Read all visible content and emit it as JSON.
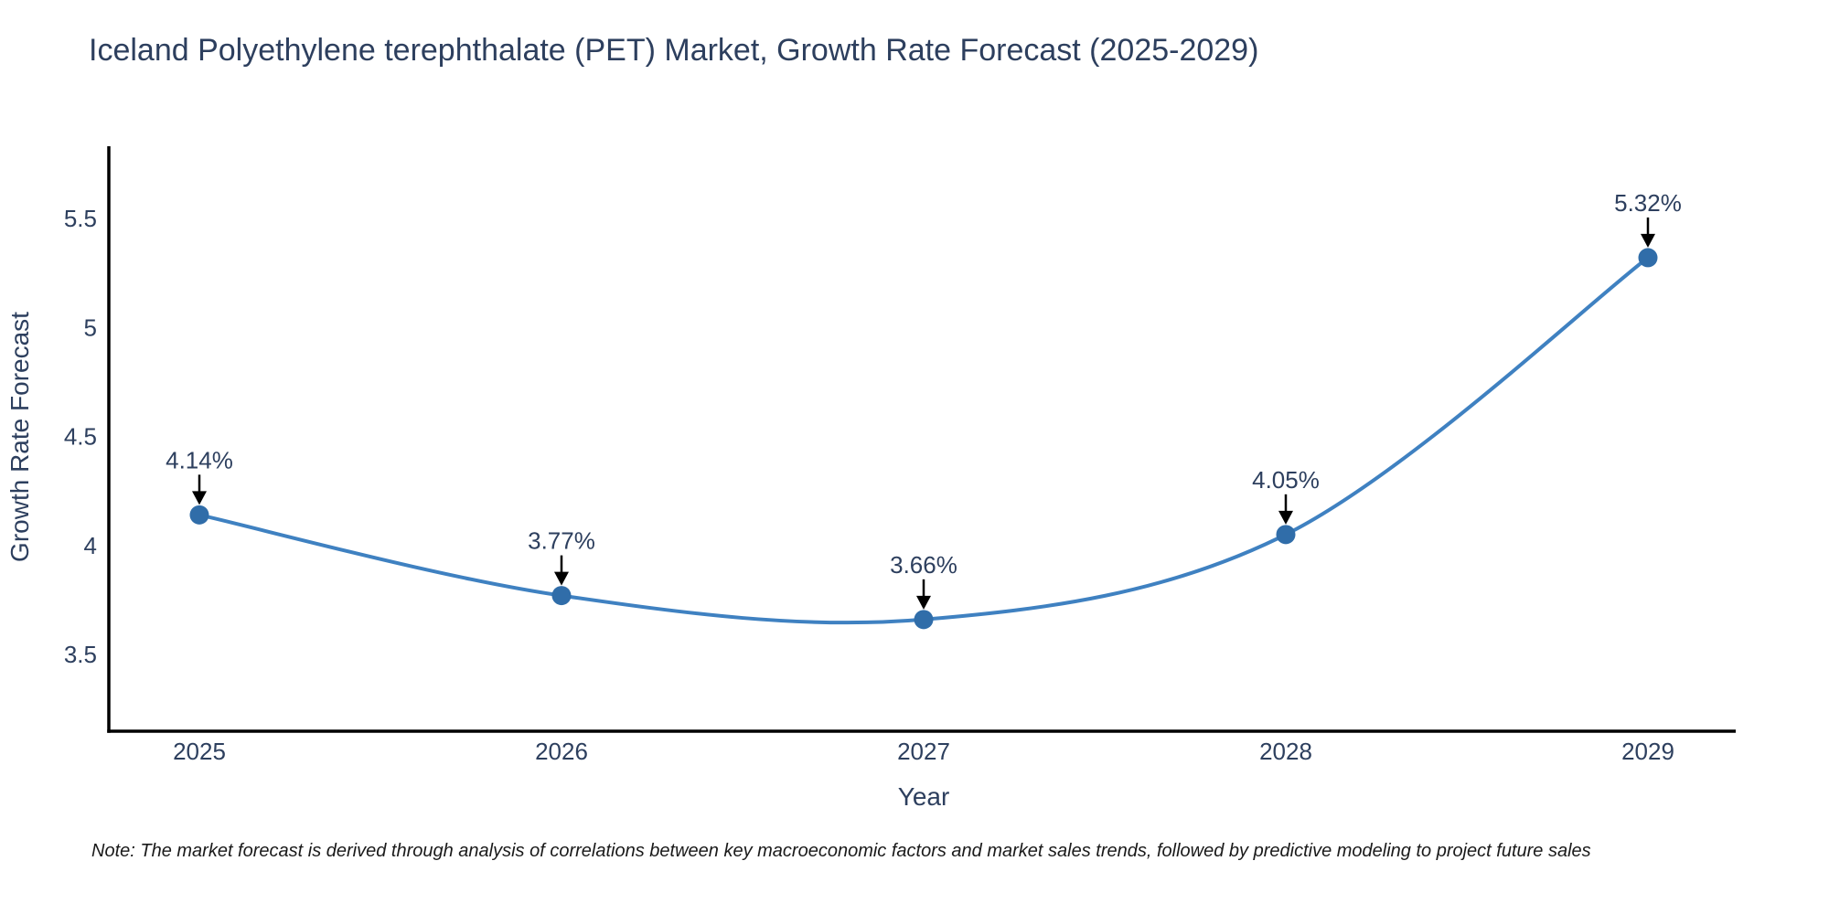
{
  "title": "Iceland Polyethylene terephthalate (PET) Market, Growth Rate Forecast (2025-2029)",
  "note": "Note: The market forecast is derived through analysis of correlations between key macroeconomic factors and market sales trends, followed by predictive modeling to project future sales",
  "colors": {
    "line": "#3f81c1",
    "marker": "#306da9",
    "axis": "#000000",
    "text": "#2d3f5e",
    "arrow": "#000000"
  },
  "chart_data": {
    "type": "line",
    "title": "Iceland Polyethylene terephthalate (PET) Market, Growth Rate Forecast (2025-2029)",
    "x": [
      "2025",
      "2026",
      "2027",
      "2028",
      "2029"
    ],
    "series": [
      {
        "name": "Growth Rate Forecast",
        "values": [
          4.14,
          3.77,
          3.66,
          4.05,
          5.32
        ]
      }
    ],
    "point_labels": [
      "4.14%",
      "3.77%",
      "3.66%",
      "4.05%",
      "5.32%"
    ],
    "xlabel": "Year",
    "ylabel": "Growth Rate Forecast",
    "y_ticks": [
      "3.5",
      "4",
      "4.5",
      "5",
      "5.5"
    ],
    "ylim": [
      3.15,
      5.85
    ],
    "grid": false,
    "legend_position": "none",
    "line_shape": "spline",
    "line_color": "#3f81c1",
    "marker_color": "#306da9"
  }
}
